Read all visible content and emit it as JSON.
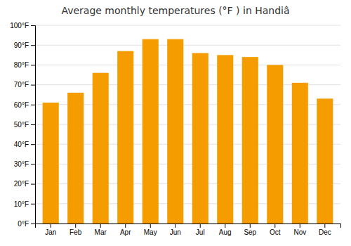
{
  "chart_data": {
    "type": "bar",
    "title": "Average monthly temperatures (°F ) in Handiâ",
    "categories": [
      "Jan",
      "Feb",
      "Mar",
      "Apr",
      "May",
      "Jun",
      "Jul",
      "Aug",
      "Sep",
      "Oct",
      "Nov",
      "Dec"
    ],
    "values": [
      61,
      66,
      76,
      87,
      93,
      93,
      86,
      85,
      84,
      80,
      71,
      63
    ],
    "color": "#F59C00",
    "ylim": [
      0,
      100
    ],
    "yticks": [
      {
        "value": 0,
        "label": "0°F"
      },
      {
        "value": 10,
        "label": "10°F"
      },
      {
        "value": 20,
        "label": "20°F"
      },
      {
        "value": 30,
        "label": "30°F"
      },
      {
        "value": 40,
        "label": "40°F"
      },
      {
        "value": 50,
        "label": "50°F"
      },
      {
        "value": 60,
        "label": "60°F"
      },
      {
        "value": 70,
        "label": "70°F"
      },
      {
        "value": 80,
        "label": "80°F"
      },
      {
        "value": 90,
        "label": "90°F"
      },
      {
        "value": 100,
        "label": "100°F"
      }
    ],
    "grid": true
  }
}
